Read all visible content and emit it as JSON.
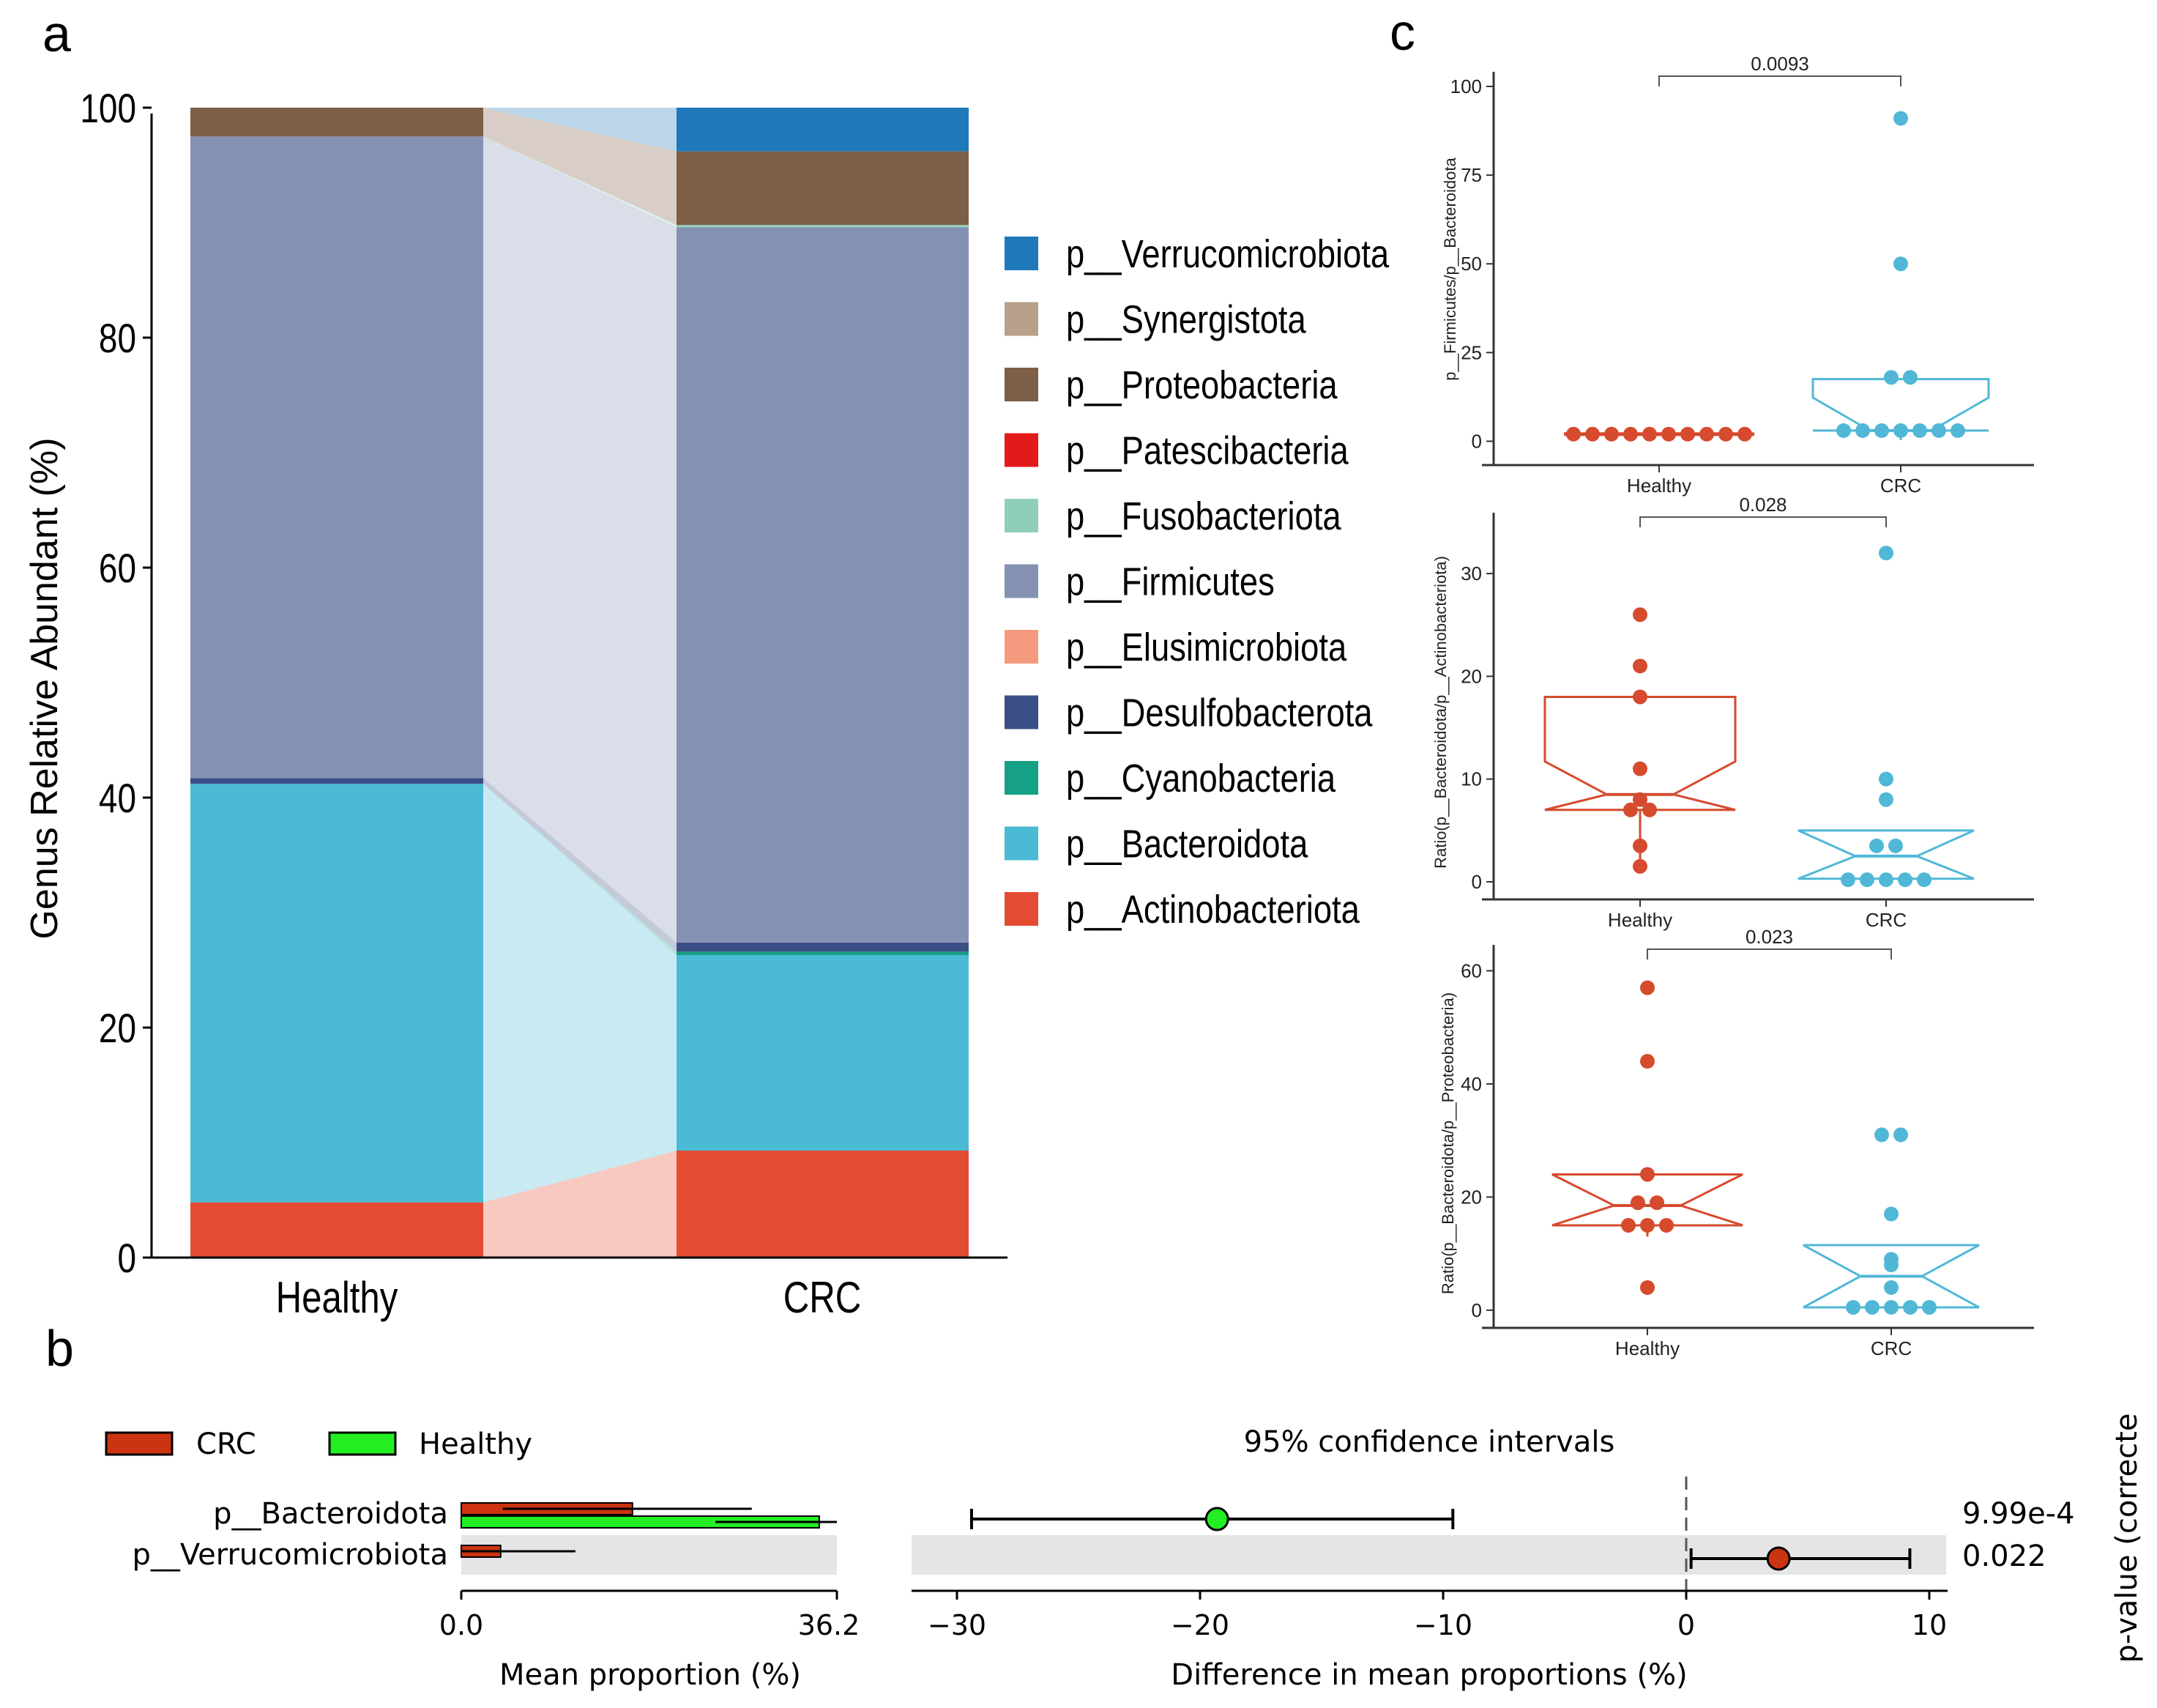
{
  "panel_labels": {
    "a": "a",
    "b": "b",
    "c": "c"
  },
  "colors": {
    "Verrucomicrobiota": "#1f78b8",
    "Synergistota": "#b8a08a",
    "Proteobacteria": "#7d5e46",
    "Patescibacteria": "#e31a1c",
    "Fusobacteriota": "#8fcfba",
    "Firmicutes": "#8591b3",
    "Elusimicrobiota": "#f59a7e",
    "Desulfobacterota": "#3a4f85",
    "Cyanobacteria": "#16a085",
    "Bacteroidota": "#4bbad5",
    "Actinobacteriota": "#e44b33",
    "crc_box": "#d64a2d",
    "healthy_box": "#50b8d6",
    "bar_crc": "#cc3311",
    "bar_healthy": "#22ee22"
  },
  "chart_data": [
    {
      "id": "a",
      "type": "bar",
      "stacked": true,
      "ylabel": "Genus Relative Abundant (%)",
      "xlabel": "",
      "ylim": [
        0,
        105
      ],
      "yticks": [
        0,
        20,
        40,
        60,
        80,
        100
      ],
      "categories": [
        "Healthy",
        "CRC"
      ],
      "series": [
        {
          "name": "p__Actinobacteriota",
          "key": "Actinobacteriota",
          "values": [
            4.8,
            9.3
          ]
        },
        {
          "name": "p__Bacteroidota",
          "key": "Bacteroidota",
          "values": [
            36.4,
            17.0
          ]
        },
        {
          "name": "p__Cyanobacteria",
          "key": "Cyanobacteria",
          "values": [
            0.0,
            0.3
          ]
        },
        {
          "name": "p__Desulfobacterota",
          "key": "Desulfobacterota",
          "values": [
            0.5,
            0.8
          ]
        },
        {
          "name": "p__Elusimicrobiota",
          "key": "Elusimicrobiota",
          "values": [
            0.0,
            0.0
          ]
        },
        {
          "name": "p__Firmicutes",
          "key": "Firmicutes",
          "values": [
            55.8,
            62.2
          ]
        },
        {
          "name": "p__Fusobacteriota",
          "key": "Fusobacteriota",
          "values": [
            0.0,
            0.2
          ]
        },
        {
          "name": "p__Patescibacteria",
          "key": "Patescibacteria",
          "values": [
            0.0,
            0.0
          ]
        },
        {
          "name": "p__Proteobacteria",
          "key": "Proteobacteria",
          "values": [
            2.5,
            6.4
          ]
        },
        {
          "name": "p__Synergistota",
          "key": "Synergistota",
          "values": [
            0.0,
            0.0
          ]
        },
        {
          "name": "p__Verrucomicrobiota",
          "key": "Verrucomicrobiota",
          "values": [
            0.0,
            3.8
          ]
        }
      ],
      "legend_order": [
        "p__Verrucomicrobiota",
        "p__Synergistota",
        "p__Proteobacteria",
        "p__Patescibacteria",
        "p__Fusobacteriota",
        "p__Firmicutes",
        "p__Elusimicrobiota",
        "p__Desulfobacterota",
        "p__Cyanobacteria",
        "p__Bacteroidota",
        "p__Actinobacteriota"
      ]
    },
    {
      "id": "b",
      "type": "bar",
      "legend": [
        "CRC",
        "Healthy"
      ],
      "categories": [
        "p__Bacteroidota",
        "p__Verrucomicrobiota"
      ],
      "mean_proportion": {
        "xlabel": "Mean proportion (%)",
        "xticks": [
          "0.0",
          "36.2"
        ],
        "xlim": [
          0,
          36.2
        ],
        "series": [
          {
            "name": "CRC",
            "values": [
              16.5,
              3.8
            ],
            "err_low": [
              4.0,
              0.0
            ],
            "err_high": [
              28.0,
              11.0
            ]
          },
          {
            "name": "Healthy",
            "values": [
              34.5,
              0.0
            ],
            "err_low": [
              24.5,
              0.0
            ],
            "err_high": [
              36.2,
              0.0
            ]
          }
        ]
      },
      "difference": {
        "title": "95% confidence intervals",
        "xlabel": "Difference in mean proportions (%)",
        "xticks": [
          -30,
          -20,
          -10,
          0,
          10
        ],
        "xlim": [
          -32,
          11
        ],
        "points": [
          {
            "feature": "p__Bacteroidota",
            "diff": -19.3,
            "ci_low": -29.4,
            "ci_high": -9.6,
            "group": "Healthy"
          },
          {
            "feature": "p__Verrucomicrobiota",
            "diff": 3.8,
            "ci_low": 0.2,
            "ci_high": 9.2,
            "group": "CRC"
          }
        ]
      },
      "pvalue_label": "p-value (correcte",
      "pvalues": [
        "9.99e-4",
        "0.022"
      ]
    },
    {
      "id": "c1",
      "type": "scatter",
      "ylabel": "p__Firmicutes/p__Bacteroidota",
      "categories": [
        "Healthy",
        "CRC"
      ],
      "ylim": [
        -3,
        100
      ],
      "yticks": [
        0,
        25,
        50,
        75,
        100
      ],
      "pvalue": "0.0093",
      "points": [
        [
          2,
          2,
          2,
          2,
          2,
          2,
          2,
          2,
          2,
          2
        ],
        [
          91,
          50,
          18,
          18,
          3,
          3,
          3,
          3,
          3,
          3,
          3
        ]
      ],
      "box": [
        [
          1.5,
          1.8,
          2.0,
          2.2,
          2.4
        ],
        [
          0.3,
          3,
          3,
          17.5,
          17.5
        ]
      ]
    },
    {
      "id": "c2",
      "type": "scatter",
      "ylabel": "Ratio(p__Bacteroidota/p__Actinobacteriota)",
      "categories": [
        "Healthy",
        "CRC"
      ],
      "ylim": [
        -1.5,
        34.5
      ],
      "yticks": [
        0,
        10,
        20,
        30
      ],
      "pvalue": "0.028",
      "points": [
        [
          26,
          21,
          18,
          11,
          8,
          7,
          7,
          3.5,
          1.5
        ],
        [
          32,
          10,
          8,
          3.5,
          3.5,
          0.2,
          0.2,
          0.2,
          0.2,
          0.2
        ]
      ],
      "box": [
        [
          2,
          7,
          8.5,
          18,
          18
        ],
        [
          0.3,
          0.3,
          2.5,
          5,
          5
        ]
      ]
    },
    {
      "id": "c3",
      "type": "scatter",
      "ylabel": "Ratio(p__Bacteroidota/p__Proteobacteria)",
      "categories": [
        "Healthy",
        "CRC"
      ],
      "ylim": [
        -3,
        62
      ],
      "yticks": [
        0,
        20,
        40,
        60
      ],
      "pvalue": "0.023",
      "points": [
        [
          57,
          44,
          24,
          19,
          19,
          15,
          15,
          15,
          4
        ],
        [
          31,
          31,
          17,
          9,
          8,
          4,
          0.5,
          0.5,
          0.5,
          0.5,
          0.5
        ]
      ],
      "box": [
        [
          13,
          15,
          18.5,
          24,
          24
        ],
        [
          0.5,
          0.5,
          6,
          11.5,
          11.5
        ]
      ]
    }
  ]
}
